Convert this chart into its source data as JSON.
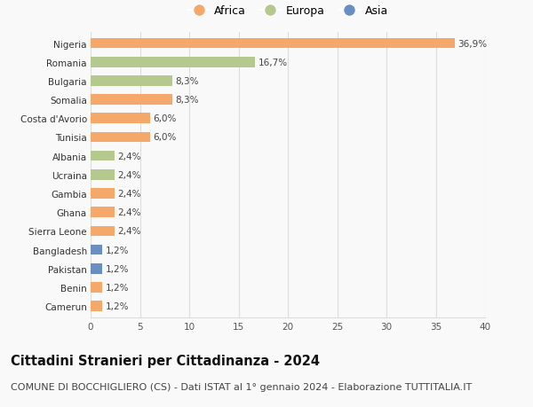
{
  "countries": [
    "Nigeria",
    "Romania",
    "Bulgaria",
    "Somalia",
    "Costa d'Avorio",
    "Tunisia",
    "Albania",
    "Ucraina",
    "Gambia",
    "Ghana",
    "Sierra Leone",
    "Bangladesh",
    "Pakistan",
    "Benin",
    "Camerun"
  ],
  "values": [
    36.9,
    16.7,
    8.3,
    8.3,
    6.0,
    6.0,
    2.4,
    2.4,
    2.4,
    2.4,
    2.4,
    1.2,
    1.2,
    1.2,
    1.2
  ],
  "labels": [
    "36,9%",
    "16,7%",
    "8,3%",
    "8,3%",
    "6,0%",
    "6,0%",
    "2,4%",
    "2,4%",
    "2,4%",
    "2,4%",
    "2,4%",
    "1,2%",
    "1,2%",
    "1,2%",
    "1,2%"
  ],
  "continents": [
    "Africa",
    "Europa",
    "Europa",
    "Africa",
    "Africa",
    "Africa",
    "Europa",
    "Europa",
    "Africa",
    "Africa",
    "Africa",
    "Asia",
    "Asia",
    "Africa",
    "Africa"
  ],
  "colors": {
    "Africa": "#F4A96B",
    "Europa": "#B5C98E",
    "Asia": "#6B8EC2"
  },
  "legend_labels": [
    "Africa",
    "Europa",
    "Asia"
  ],
  "title": "Cittadini Stranieri per Cittadinanza - 2024",
  "subtitle": "COMUNE DI BOCCHIGLIERO (CS) - Dati ISTAT al 1° gennaio 2024 - Elaborazione TUTTITALIA.IT",
  "xlim": [
    0,
    40
  ],
  "xticks": [
    0,
    5,
    10,
    15,
    20,
    25,
    30,
    35,
    40
  ],
  "background_color": "#f9f9f9",
  "grid_color": "#dddddd",
  "title_fontsize": 10.5,
  "subtitle_fontsize": 8,
  "label_fontsize": 7.5,
  "tick_fontsize": 7.5,
  "legend_fontsize": 9
}
